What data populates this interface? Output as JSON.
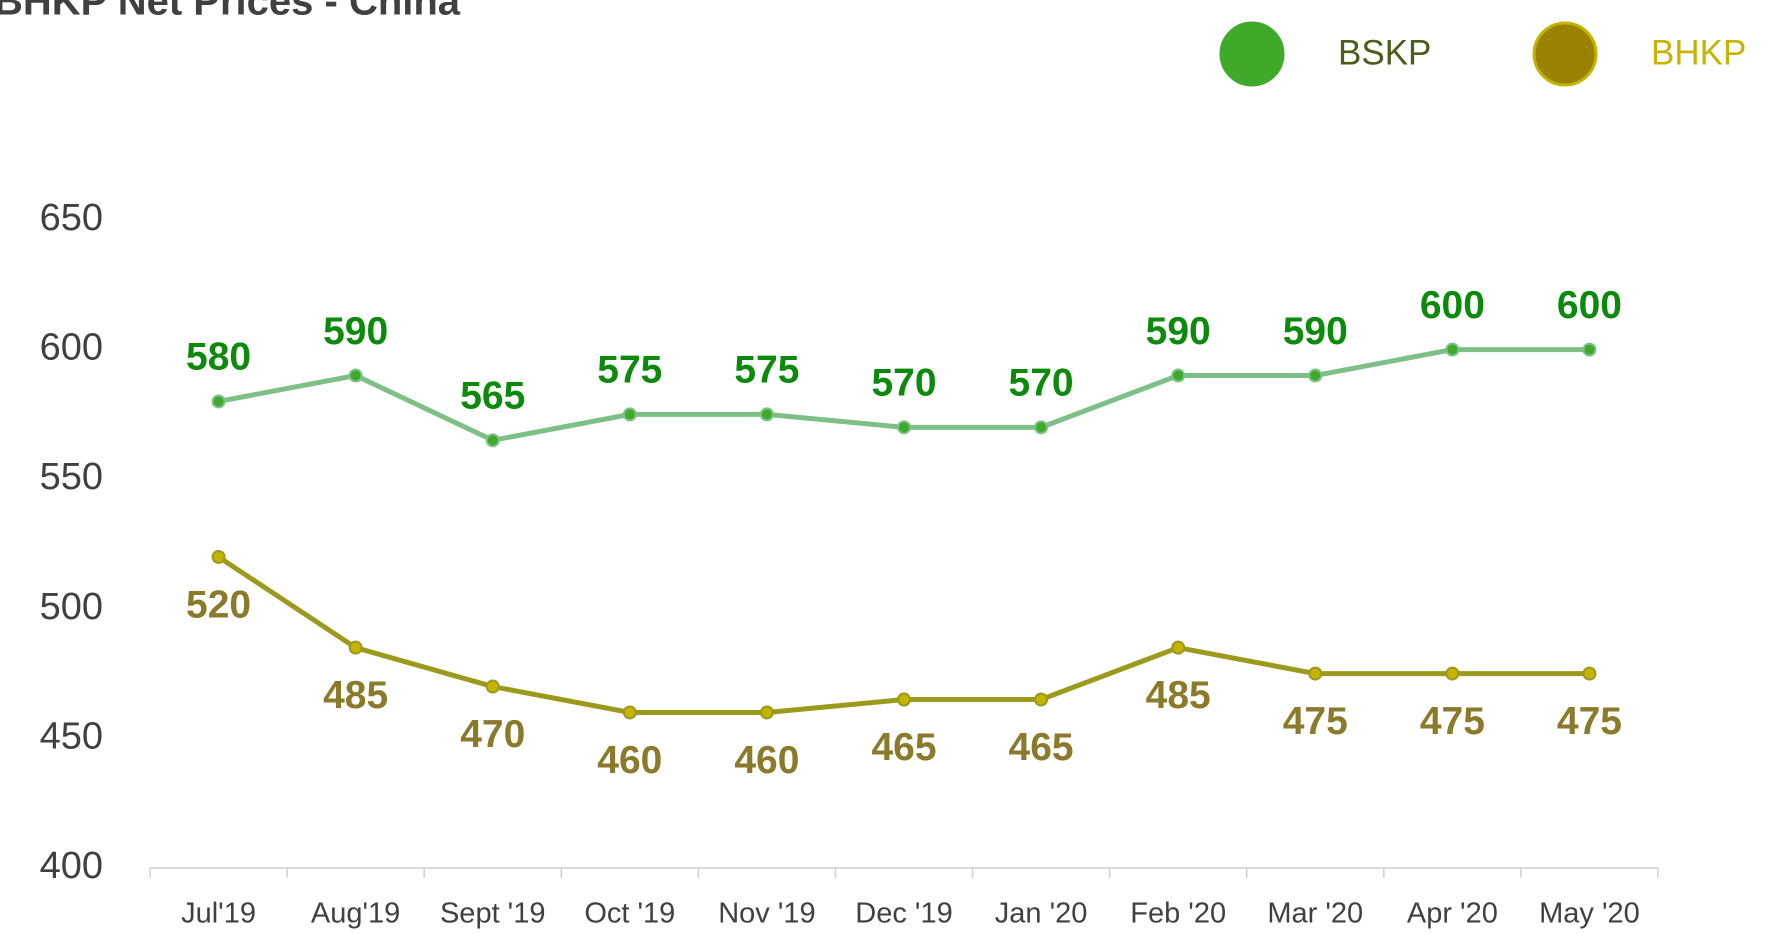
{
  "chart_data": {
    "type": "line",
    "title": "BHKP Net Prices - China",
    "categories": [
      "Jul'19",
      "Aug'19",
      "Sept '19",
      "Oct '19",
      "Nov '19",
      "Dec '19",
      "Jan '20",
      "Feb '20",
      "Mar '20",
      "Apr '20",
      "May '20"
    ],
    "series": [
      {
        "name": "BSKP",
        "color": "#7cc088",
        "marker_color": "#3faa2a",
        "label_color": "#0b8a0b",
        "legend_text_color": "#4a5e1a",
        "label_position": "above",
        "values": [
          580,
          590,
          565,
          575,
          575,
          570,
          570,
          590,
          590,
          600,
          600
        ]
      },
      {
        "name": "BHKP",
        "color": "#9c9a1c",
        "marker_color": "#c2b400",
        "label_color": "#8b7a2a",
        "legend_text_color": "#c8b400",
        "label_position": "below",
        "values": [
          520,
          485,
          470,
          460,
          460,
          465,
          465,
          485,
          475,
          475,
          475
        ]
      }
    ],
    "ylim": [
      400,
      650
    ],
    "yticks": [
      400,
      450,
      500,
      550,
      600,
      650
    ],
    "grid": false,
    "legend": "top-right"
  }
}
